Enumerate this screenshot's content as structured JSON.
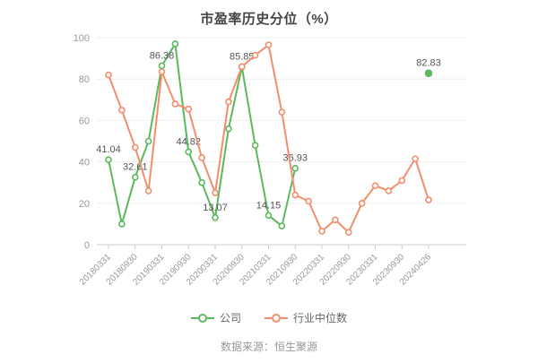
{
  "title": "市盈率历史分位（%）",
  "footer": {
    "source_label": "数据来源：恒生聚源"
  },
  "colors": {
    "company_green": "#5cb85c",
    "industry_salmon": "#f28e6d",
    "grid": "#eeeeee",
    "axis": "#cccccc",
    "tick_text": "#999999",
    "data_label": "#555555",
    "title_text": "#454545",
    "legend_text": "#666666"
  },
  "chart_data": {
    "type": "line",
    "title": "市盈率历史分位（%）",
    "xlabel": "",
    "ylabel": "",
    "ylim": [
      0,
      100
    ],
    "y_ticks": [
      0,
      20,
      40,
      60,
      80,
      100
    ],
    "grid": "horizontal",
    "legend_position": "bottom",
    "x_tick_labels": [
      "20180331",
      "20180930",
      "20190331",
      "20190930",
      "20200331",
      "20200930",
      "20210331",
      "20210930",
      "20220331",
      "20220930",
      "20230331",
      "20230930",
      "20240426"
    ],
    "points_per_tick_interval": 2,
    "series": [
      {
        "name": "公司",
        "color": "#5cb85c",
        "values": [
          41.04,
          10,
          32.61,
          50,
          86.38,
          97,
          44.82,
          30,
          13.07,
          56,
          85.85,
          48,
          14.15,
          9,
          36.93,
          null,
          null,
          null,
          null,
          null,
          null,
          null,
          null,
          null,
          82.83
        ],
        "point_labels": {
          "0": "41.04",
          "2": "32.61",
          "4": "86.38",
          "6": "44.82",
          "8": "13.07",
          "10": "85.85",
          "12": "14.15",
          "14": "36.93",
          "24": "82.83"
        }
      },
      {
        "name": "行业中位数",
        "color": "#f28e6d",
        "values": [
          82,
          65,
          47,
          26,
          83.5,
          68,
          65.5,
          42,
          25,
          69,
          86,
          91.5,
          96.5,
          64,
          24,
          21,
          6.5,
          12,
          6,
          20,
          28.5,
          26,
          31,
          41.5,
          21.6
        ],
        "point_labels": {}
      }
    ]
  }
}
